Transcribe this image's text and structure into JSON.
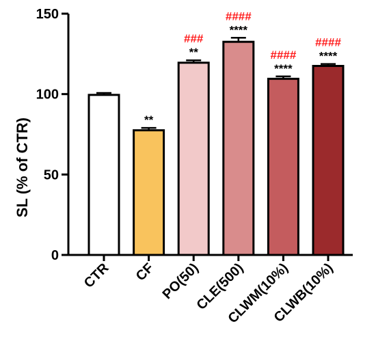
{
  "chart_data": {
    "type": "bar",
    "title": "",
    "xlabel": "",
    "ylabel": "SL (% of CTR)",
    "ylim": [
      0,
      150
    ],
    "yticks": [
      0,
      50,
      100,
      150
    ],
    "grid": false,
    "categories": [
      "CTR",
      "CF",
      "PO(50)",
      "CLE(500)",
      "CLWM(10%)",
      "CLWB(10%)"
    ],
    "values": [
      99.5,
      77.5,
      119.5,
      132.5,
      109.5,
      117.5
    ],
    "errors": [
      1.2,
      1.5,
      1.5,
      2.5,
      1.5,
      1.2
    ],
    "colors": [
      "#ffffff",
      "#f9c35d",
      "#f2c9c9",
      "#d98c8c",
      "#c45c5e",
      "#9b2a2c"
    ],
    "annotations_star": [
      "",
      "**",
      "**",
      "****",
      "****",
      "****"
    ],
    "annotations_hash": [
      "",
      "",
      "###",
      "####",
      "####",
      "####"
    ],
    "star_color": "#000000",
    "hash_color": "#ff1a1a"
  }
}
